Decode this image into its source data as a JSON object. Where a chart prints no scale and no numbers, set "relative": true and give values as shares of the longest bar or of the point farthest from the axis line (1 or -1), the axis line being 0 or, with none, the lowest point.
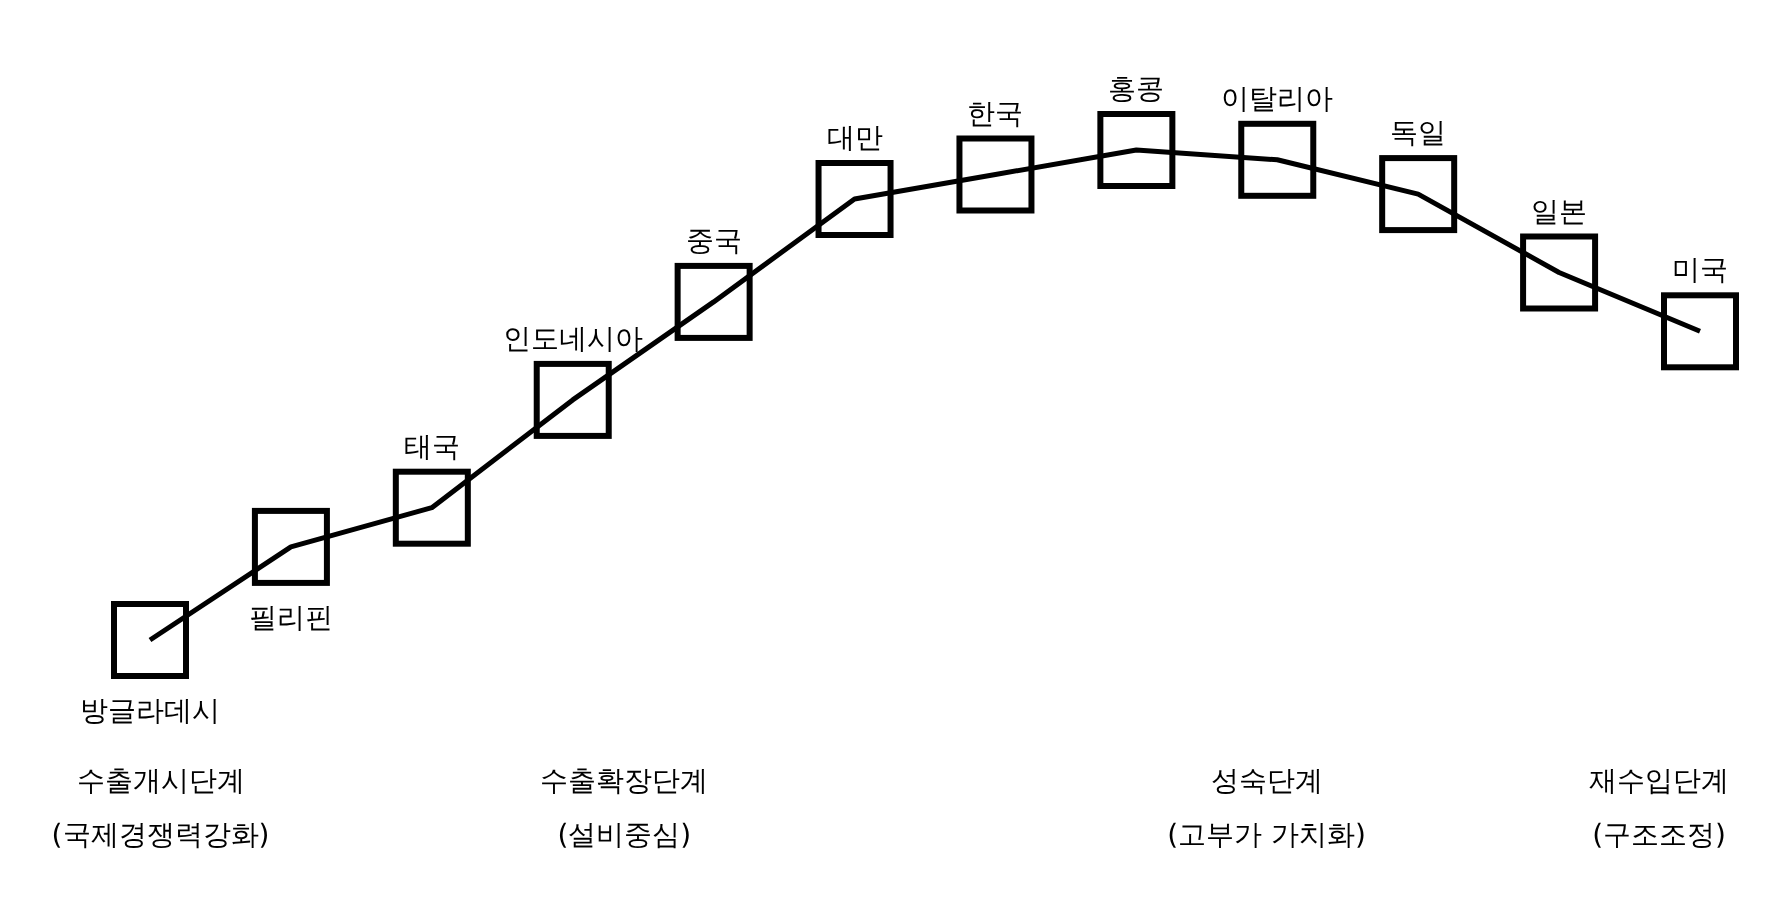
{
  "chart_data": {
    "type": "line",
    "relative": true,
    "marker": "square",
    "color": "#000000",
    "categories": [
      "방글라데시",
      "필리핀",
      "태국",
      "인도네시아",
      "중국",
      "대만",
      "한국",
      "홍콩",
      "이탈리아",
      "독일",
      "일본",
      "미국"
    ],
    "values": [
      0,
      0.19,
      0.27,
      0.49,
      0.69,
      0.9,
      0.95,
      1,
      0.98,
      0.91,
      0.75,
      0.63
    ],
    "annotations": [
      "수출개시단계",
      "(국제경쟁력강화)",
      "수출확장단계",
      "(설비중심)",
      "성숙단계",
      "(고부가 가치화)",
      "재수입단계",
      "(구조조정)"
    ]
  }
}
